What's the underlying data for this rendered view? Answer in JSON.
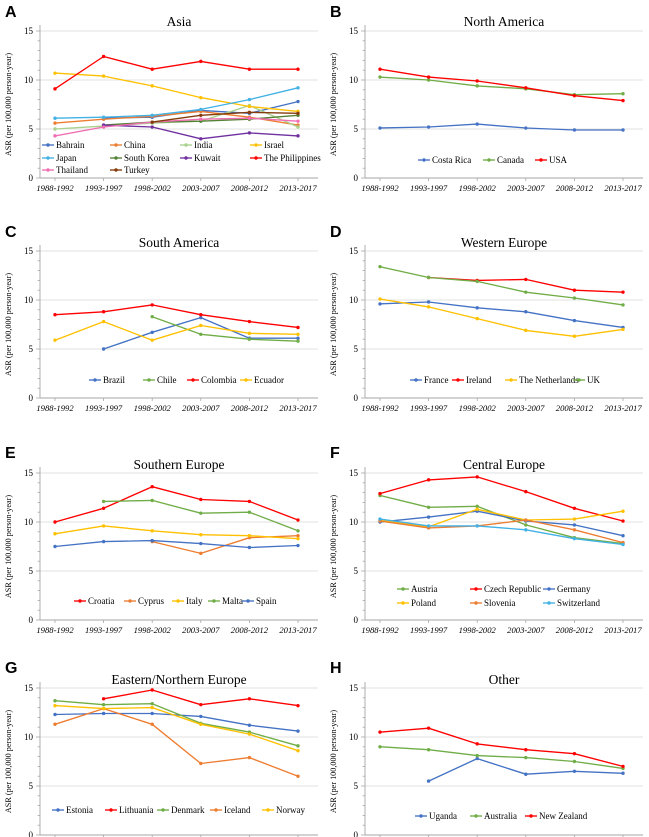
{
  "figure": {
    "ylabel": "ASR (per 100,000 person-year)",
    "categories": [
      "1988-1992",
      "1993-1997",
      "1998-2002",
      "2003-2007",
      "2008-2012",
      "2013-2017"
    ],
    "yticks": [
      0,
      5,
      10,
      15
    ],
    "grid_color": "#D9D9D9",
    "axis_color": "#A6A6A6"
  },
  "chart_data": [
    {
      "type": "line",
      "letter": "A",
      "title": "Asia",
      "xlabel": "",
      "ylabel": "ASR (per 100,000 person-year)",
      "ylim": [
        0,
        15
      ],
      "categories": [
        "1988-1992",
        "1993-1997",
        "1998-2002",
        "2003-2007",
        "2008-2012",
        "2013-2017"
      ],
      "series": [
        {
          "name": "Bahrain",
          "color": "#4472C4",
          "values": [
            null,
            6.1,
            6.2,
            6.9,
            6.6,
            7.8
          ]
        },
        {
          "name": "China",
          "color": "#ED7D31",
          "values": [
            5.6,
            6.0,
            6.3,
            6.8,
            6.2,
            5.4
          ]
        },
        {
          "name": "India",
          "color": "#A9D18E",
          "values": [
            5.0,
            5.3,
            5.6,
            5.8,
            7.4,
            5.2
          ]
        },
        {
          "name": "Israel",
          "color": "#FFC000",
          "values": [
            10.7,
            10.4,
            9.4,
            8.2,
            7.3,
            6.8
          ]
        },
        {
          "name": "Japan",
          "color": "#42B1E5",
          "values": [
            6.1,
            6.2,
            6.4,
            7.0,
            8.0,
            9.2
          ]
        },
        {
          "name": "South Korea",
          "color": "#548235",
          "values": [
            null,
            5.4,
            5.7,
            5.8,
            6.0,
            6.4
          ]
        },
        {
          "name": "Kuwait",
          "color": "#7030A0",
          "values": [
            null,
            5.4,
            5.2,
            4.0,
            4.6,
            4.3
          ]
        },
        {
          "name": "The Philippines",
          "color": "#FF0000",
          "values": [
            9.1,
            12.4,
            11.1,
            11.9,
            11.1,
            11.1
          ]
        },
        {
          "name": "Thailand",
          "color": "#F06FB4",
          "values": [
            4.3,
            5.2,
            5.7,
            6.0,
            6.1,
            5.8
          ]
        },
        {
          "name": "Turkey",
          "color": "#843C0C",
          "values": [
            null,
            null,
            5.7,
            6.4,
            6.7,
            6.6
          ]
        }
      ]
    },
    {
      "type": "line",
      "letter": "B",
      "title": "North America",
      "xlabel": "",
      "ylabel": "ASR (per 100,000 person-year)",
      "ylim": [
        0,
        15
      ],
      "categories": [
        "1988-1992",
        "1993-1997",
        "1998-2002",
        "2003-2007",
        "2008-2012",
        "2013-2017"
      ],
      "series": [
        {
          "name": "Costa Rica",
          "color": "#4472C4",
          "values": [
            5.1,
            5.2,
            5.5,
            5.1,
            4.9,
            4.9
          ]
        },
        {
          "name": "Canada",
          "color": "#70AD47",
          "values": [
            10.3,
            10.0,
            9.4,
            9.1,
            8.5,
            8.6
          ]
        },
        {
          "name": "USA",
          "color": "#FF0000",
          "values": [
            11.1,
            10.3,
            9.9,
            9.2,
            8.4,
            7.9
          ]
        }
      ]
    },
    {
      "type": "line",
      "letter": "C",
      "title": "South America",
      "xlabel": "",
      "ylabel": "ASR (per 100,000 person-year)",
      "ylim": [
        0,
        15
      ],
      "categories": [
        "1988-1992",
        "1993-1997",
        "1998-2002",
        "2003-2007",
        "2008-2012",
        "2013-2017"
      ],
      "series": [
        {
          "name": "Brazil",
          "color": "#4472C4",
          "values": [
            null,
            5.0,
            6.7,
            8.2,
            6.1,
            6.1
          ]
        },
        {
          "name": "Chile",
          "color": "#70AD47",
          "values": [
            null,
            null,
            8.3,
            6.5,
            6.0,
            5.8
          ]
        },
        {
          "name": "Colombia",
          "color": "#FF0000",
          "values": [
            8.5,
            8.8,
            9.5,
            8.5,
            7.8,
            7.2
          ]
        },
        {
          "name": "Ecuador",
          "color": "#FFC000",
          "values": [
            5.9,
            7.8,
            5.9,
            7.4,
            6.6,
            6.5
          ]
        }
      ]
    },
    {
      "type": "line",
      "letter": "D",
      "title": "Western Europe",
      "xlabel": "",
      "ylabel": "ASR (per 100,000 person-year)",
      "ylim": [
        0,
        15
      ],
      "categories": [
        "1988-1992",
        "1993-1997",
        "1998-2002",
        "2003-2007",
        "2008-2012",
        "2013-2017"
      ],
      "series": [
        {
          "name": "France",
          "color": "#4472C4",
          "values": [
            9.6,
            9.8,
            9.2,
            8.8,
            7.9,
            7.2
          ]
        },
        {
          "name": "Ireland",
          "color": "#FF0000",
          "values": [
            null,
            12.3,
            12.0,
            12.1,
            11.0,
            10.8
          ]
        },
        {
          "name": "The Netherlands",
          "color": "#FFC000",
          "values": [
            10.1,
            9.3,
            8.1,
            6.9,
            6.3,
            7.0
          ]
        },
        {
          "name": "UK",
          "color": "#70AD47",
          "values": [
            13.4,
            12.3,
            11.9,
            10.8,
            10.2,
            9.5
          ]
        }
      ]
    },
    {
      "type": "line",
      "letter": "E",
      "title": "Southern Europe",
      "xlabel": "",
      "ylabel": "ASR (per 100,000 person-year)",
      "ylim": [
        0,
        15
      ],
      "categories": [
        "1988-1992",
        "1993-1997",
        "1998-2002",
        "2003-2007",
        "2008-2012",
        "2013-2017"
      ],
      "series": [
        {
          "name": "Croatia",
          "color": "#FF0000",
          "values": [
            10.0,
            11.4,
            13.6,
            12.3,
            12.1,
            10.2
          ]
        },
        {
          "name": "Cyprus",
          "color": "#ED7D31",
          "values": [
            null,
            null,
            8.0,
            6.8,
            8.4,
            8.6
          ]
        },
        {
          "name": "Italy",
          "color": "#FFC000",
          "values": [
            8.8,
            9.6,
            9.1,
            8.7,
            8.6,
            8.3
          ]
        },
        {
          "name": "Malta",
          "color": "#70AD47",
          "values": [
            null,
            12.1,
            12.2,
            10.9,
            11.0,
            9.1
          ]
        },
        {
          "name": "Spain",
          "color": "#4472C4",
          "values": [
            7.5,
            8.0,
            8.1,
            7.8,
            7.4,
            7.6
          ]
        }
      ]
    },
    {
      "type": "line",
      "letter": "F",
      "title": "Central Europe",
      "xlabel": "",
      "ylabel": "ASR (per 100,000 person-year)",
      "ylim": [
        0,
        15
      ],
      "categories": [
        "1988-1992",
        "1993-1997",
        "1998-2002",
        "2003-2007",
        "2008-2012",
        "2013-2017"
      ],
      "series": [
        {
          "name": "Austria",
          "color": "#70AD47",
          "values": [
            12.7,
            11.5,
            11.6,
            9.7,
            8.4,
            7.8
          ]
        },
        {
          "name": "Czech Republic",
          "color": "#FF0000",
          "values": [
            12.9,
            14.3,
            14.6,
            13.1,
            11.4,
            10.1
          ]
        },
        {
          "name": "Germany",
          "color": "#4472C4",
          "values": [
            10.0,
            10.5,
            11.1,
            10.1,
            9.7,
            8.6
          ]
        },
        {
          "name": "Poland",
          "color": "#FFC000",
          "values": [
            10.2,
            9.5,
            11.3,
            10.2,
            10.3,
            11.1
          ]
        },
        {
          "name": "Slovenia",
          "color": "#ED7D31",
          "values": [
            10.1,
            9.4,
            9.6,
            10.2,
            9.2,
            7.9
          ]
        },
        {
          "name": "Switzerland",
          "color": "#42B1E5",
          "values": [
            10.3,
            9.6,
            9.6,
            9.2,
            8.3,
            7.7
          ]
        }
      ]
    },
    {
      "type": "line",
      "letter": "G",
      "title": "Eastern/Northern Europe",
      "xlabel": "",
      "ylabel": "ASR (per 100,000 person-year)",
      "ylim": [
        0,
        15
      ],
      "categories": [
        "1988-1992",
        "1993-1997",
        "1998-2002",
        "2003-2007",
        "2008-2012",
        "2013-2017"
      ],
      "series": [
        {
          "name": "Estonia",
          "color": "#4472C4",
          "values": [
            12.3,
            12.4,
            12.4,
            12.1,
            11.2,
            10.6
          ]
        },
        {
          "name": "Lithuania",
          "color": "#FF0000",
          "values": [
            null,
            13.9,
            14.8,
            13.3,
            13.9,
            13.2
          ]
        },
        {
          "name": "Denmark",
          "color": "#70AD47",
          "values": [
            13.7,
            13.3,
            13.4,
            11.4,
            10.5,
            9.1
          ]
        },
        {
          "name": "Iceland",
          "color": "#ED7D31",
          "values": [
            11.3,
            12.9,
            11.3,
            7.3,
            7.9,
            6.0
          ]
        },
        {
          "name": "Norway",
          "color": "#FFC000",
          "values": [
            13.2,
            12.9,
            13.0,
            11.3,
            10.3,
            8.6
          ]
        }
      ]
    },
    {
      "type": "line",
      "letter": "H",
      "title": "Other",
      "xlabel": "",
      "ylabel": "ASR (per 100,000 person-year)",
      "ylim": [
        0,
        15
      ],
      "categories": [
        "1988-1992",
        "1993-1997",
        "1998-2002",
        "2003-2007",
        "2008-2012",
        "2013-2017"
      ],
      "series": [
        {
          "name": "Uganda",
          "color": "#4472C4",
          "values": [
            null,
            5.5,
            7.8,
            6.2,
            6.5,
            6.3
          ]
        },
        {
          "name": "Australia",
          "color": "#70AD47",
          "values": [
            9.0,
            8.7,
            8.1,
            7.9,
            7.5,
            6.8
          ]
        },
        {
          "name": "New Zealand",
          "color": "#FF0000",
          "values": [
            10.5,
            10.9,
            9.3,
            8.7,
            8.3,
            7.0
          ]
        }
      ]
    }
  ]
}
